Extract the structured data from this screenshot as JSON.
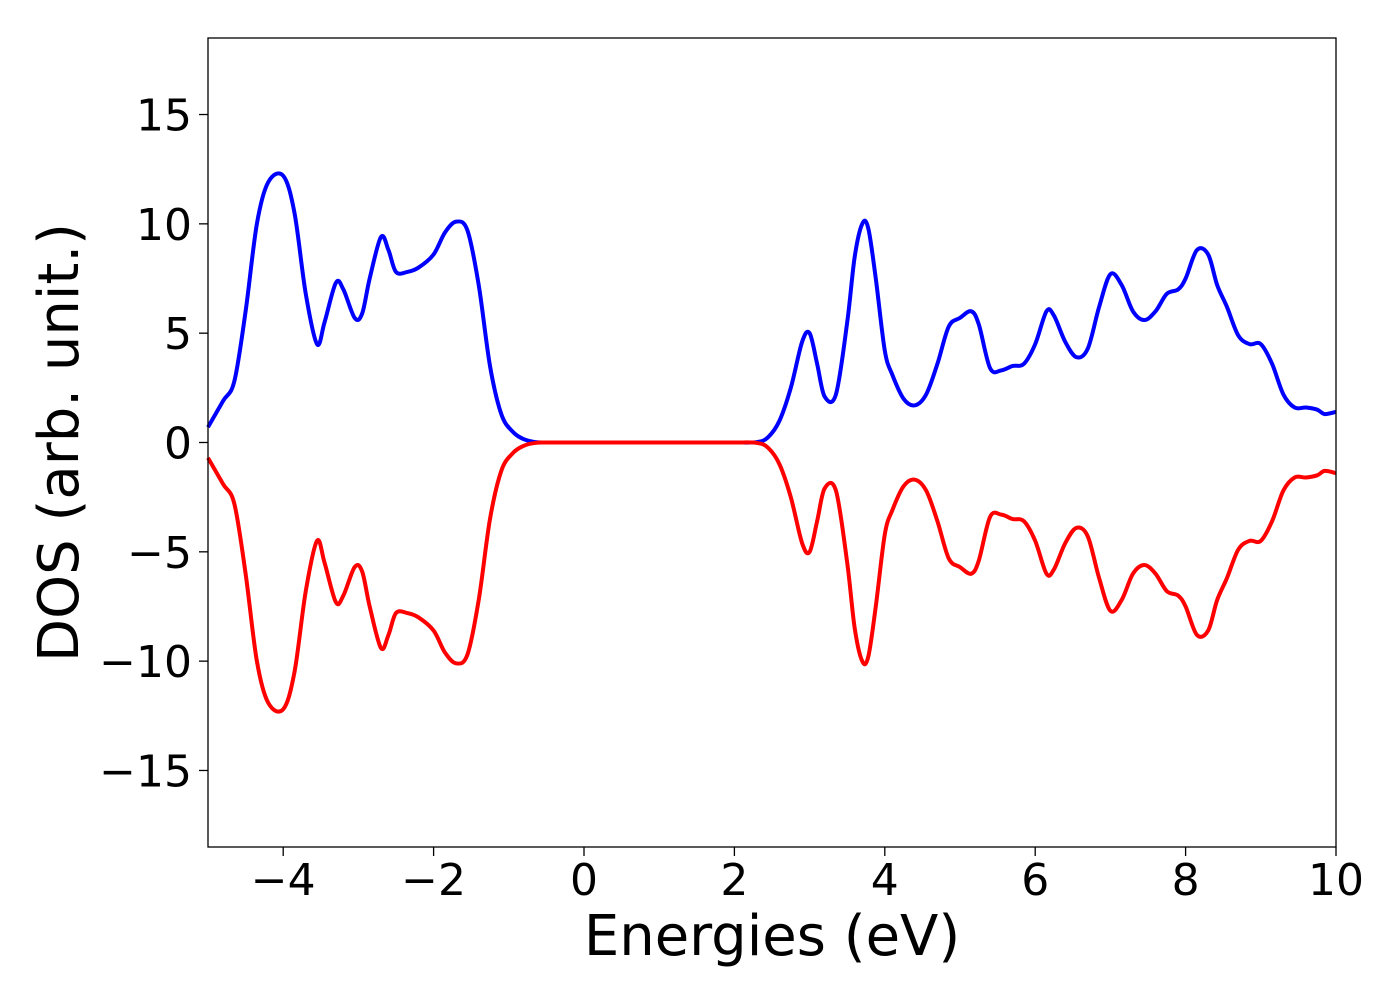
{
  "chart_data": {
    "type": "line",
    "title": "",
    "xlabel": "Energies (eV)",
    "ylabel": "DOS (arb. unit.)",
    "xlim": [
      -5,
      10
    ],
    "ylim": [
      -18.5,
      18.5
    ],
    "xticks": [
      -4,
      -2,
      0,
      2,
      4,
      6,
      8,
      10
    ],
    "yticks": [
      -15,
      -10,
      -5,
      0,
      5,
      10,
      15
    ],
    "xtick_labels": [
      "−4",
      "−2",
      "0",
      "2",
      "4",
      "6",
      "8",
      "10"
    ],
    "ytick_labels": [
      "−15",
      "−10",
      "−5",
      "0",
      "5",
      "10",
      "15"
    ],
    "grid": false,
    "series": [
      {
        "color": "#0000ff",
        "x": [
          -5.0,
          -4.8,
          -4.65,
          -4.5,
          -4.35,
          -4.2,
          -4.0,
          -3.85,
          -3.7,
          -3.55,
          -3.45,
          -3.3,
          -3.2,
          -3.05,
          -2.95,
          -2.85,
          -2.7,
          -2.6,
          -2.5,
          -2.35,
          -2.2,
          -2.0,
          -1.85,
          -1.7,
          -1.55,
          -1.4,
          -1.25,
          -1.1,
          -0.95,
          -0.8,
          -0.65,
          -0.5,
          0.0,
          0.5,
          1.0,
          1.5,
          2.0,
          2.3,
          2.45,
          2.6,
          2.75,
          2.9,
          3.0,
          3.1,
          3.2,
          3.35,
          3.5,
          3.6,
          3.7,
          3.78,
          3.88,
          4.0,
          4.1,
          4.25,
          4.4,
          4.55,
          4.7,
          4.85,
          5.0,
          5.15,
          5.25,
          5.4,
          5.55,
          5.7,
          5.85,
          6.0,
          6.15,
          6.25,
          6.4,
          6.55,
          6.7,
          6.85,
          7.0,
          7.15,
          7.3,
          7.45,
          7.6,
          7.75,
          7.9,
          8.0,
          8.15,
          8.3,
          8.42,
          8.55,
          8.7,
          8.85,
          9.0,
          9.15,
          9.3,
          9.45,
          9.6,
          9.75,
          9.85,
          10.0
        ],
        "y": [
          0.7,
          1.9,
          2.8,
          6.0,
          10.0,
          11.9,
          12.2,
          10.5,
          6.8,
          4.5,
          5.5,
          7.3,
          7.0,
          5.7,
          5.9,
          7.5,
          9.4,
          8.8,
          7.8,
          7.8,
          8.0,
          8.6,
          9.6,
          10.1,
          9.7,
          7.2,
          3.5,
          1.3,
          0.5,
          0.15,
          0.02,
          0.0,
          0.0,
          0.0,
          0.0,
          0.0,
          0.0,
          0.02,
          0.25,
          1.0,
          2.5,
          4.6,
          5.0,
          3.6,
          2.1,
          2.2,
          5.5,
          8.5,
          10.0,
          9.8,
          7.5,
          4.2,
          3.1,
          2.0,
          1.7,
          2.2,
          3.6,
          5.3,
          5.7,
          6.0,
          5.4,
          3.4,
          3.3,
          3.5,
          3.6,
          4.5,
          6.0,
          5.8,
          4.6,
          3.9,
          4.3,
          6.2,
          7.7,
          7.2,
          6.0,
          5.6,
          6.0,
          6.8,
          7.0,
          7.5,
          8.8,
          8.6,
          7.2,
          6.2,
          4.9,
          4.5,
          4.5,
          3.6,
          2.2,
          1.6,
          1.6,
          1.5,
          1.3,
          1.4
        ]
      },
      {
        "color": "#ff0000",
        "x": [
          -5.0,
          -4.8,
          -4.65,
          -4.5,
          -4.35,
          -4.2,
          -4.0,
          -3.85,
          -3.7,
          -3.55,
          -3.45,
          -3.3,
          -3.2,
          -3.05,
          -2.95,
          -2.85,
          -2.7,
          -2.6,
          -2.5,
          -2.35,
          -2.2,
          -2.0,
          -1.85,
          -1.7,
          -1.55,
          -1.4,
          -1.25,
          -1.1,
          -0.95,
          -0.8,
          -0.65,
          -0.5,
          0.0,
          0.5,
          1.0,
          1.5,
          2.0,
          2.3,
          2.45,
          2.6,
          2.75,
          2.9,
          3.0,
          3.1,
          3.2,
          3.35,
          3.5,
          3.6,
          3.7,
          3.78,
          3.88,
          4.0,
          4.1,
          4.25,
          4.4,
          4.55,
          4.7,
          4.85,
          5.0,
          5.15,
          5.25,
          5.4,
          5.55,
          5.7,
          5.85,
          6.0,
          6.15,
          6.25,
          6.4,
          6.55,
          6.7,
          6.85,
          7.0,
          7.15,
          7.3,
          7.45,
          7.6,
          7.75,
          7.9,
          8.0,
          8.15,
          8.3,
          8.42,
          8.55,
          8.7,
          8.85,
          9.0,
          9.15,
          9.3,
          9.45,
          9.6,
          9.75,
          9.85,
          10.0
        ],
        "y": [
          -0.7,
          -1.9,
          -2.8,
          -6.0,
          -10.0,
          -11.9,
          -12.2,
          -10.5,
          -6.8,
          -4.5,
          -5.5,
          -7.3,
          -7.0,
          -5.7,
          -5.9,
          -7.5,
          -9.4,
          -8.8,
          -7.8,
          -7.8,
          -8.0,
          -8.6,
          -9.6,
          -10.1,
          -9.7,
          -7.2,
          -3.5,
          -1.3,
          -0.5,
          -0.15,
          -0.02,
          0.0,
          0.0,
          0.0,
          0.0,
          0.0,
          0.0,
          -0.02,
          -0.25,
          -1.0,
          -2.5,
          -4.6,
          -5.0,
          -3.6,
          -2.1,
          -2.2,
          -5.5,
          -8.5,
          -10.0,
          -9.8,
          -7.5,
          -4.2,
          -3.1,
          -2.0,
          -1.7,
          -2.2,
          -3.6,
          -5.3,
          -5.7,
          -6.0,
          -5.4,
          -3.4,
          -3.3,
          -3.5,
          -3.6,
          -4.5,
          -6.0,
          -5.8,
          -4.6,
          -3.9,
          -4.3,
          -6.2,
          -7.7,
          -7.2,
          -6.0,
          -5.6,
          -6.0,
          -6.8,
          -7.0,
          -7.5,
          -8.8,
          -8.6,
          -7.2,
          -6.2,
          -4.9,
          -4.5,
          -4.5,
          -3.6,
          -2.2,
          -1.6,
          -1.6,
          -1.5,
          -1.3,
          -1.4
        ]
      }
    ]
  }
}
